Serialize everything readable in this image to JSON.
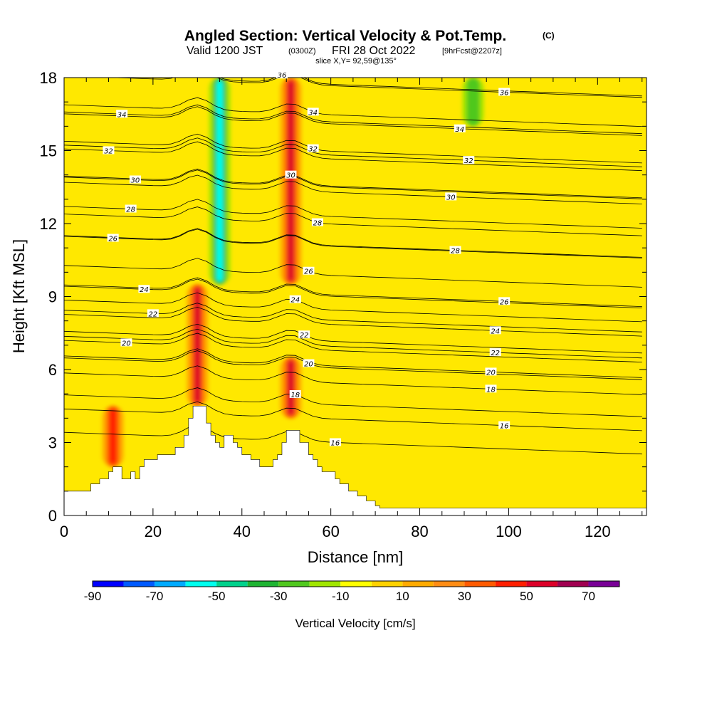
{
  "chart_data": {
    "type": "heatmap",
    "title": "Angled Section: Vertical Velocity & Pot.Temp.",
    "title_mark": "(C)",
    "subtitle": {
      "valid": "Valid 1200 JST",
      "utc": "(0300Z)",
      "date": "FRI 28 Oct 2022",
      "fcst": "[9hrFcst@2207z]"
    },
    "slice": "slice X,Y= 92,59@135°",
    "xlabel": "Distance [nm]",
    "ylabel": "Height [Kft MSL]",
    "xlim": [
      0,
      131
    ],
    "ylim": [
      0,
      18
    ],
    "xticks": [
      "0",
      "20",
      "40",
      "60",
      "80",
      "100",
      "120"
    ],
    "yticks": [
      "0",
      "3",
      "6",
      "9",
      "12",
      "15",
      "18"
    ],
    "colorbar": {
      "label": "Vertical Velocity [cm/s]",
      "range": [
        -90,
        80
      ],
      "tick_labels": [
        "-90",
        "-70",
        "-50",
        "-30",
        "-10",
        "10",
        "30",
        "50",
        "70"
      ],
      "colors": [
        "#0000ff",
        "#005aff",
        "#00aaff",
        "#00ffee",
        "#00d28c",
        "#1eb432",
        "#50c81e",
        "#a0e600",
        "#ffff00",
        "#ffd200",
        "#ffaa00",
        "#ff8c14",
        "#ff5a00",
        "#ff1e00",
        "#dc0028",
        "#a00050",
        "#780096"
      ]
    },
    "field_features": [
      {
        "kind": "updraft",
        "x": 30,
        "z_bottom": 4.5,
        "z_top": 9.5,
        "w": 55
      },
      {
        "kind": "downdraft",
        "x": 35,
        "z_bottom": 9.5,
        "z_top": 18,
        "w": -55
      },
      {
        "kind": "updraft",
        "x": 51,
        "z_bottom": 9.5,
        "z_top": 18,
        "w": 55
      },
      {
        "kind": "updraft",
        "x": 51,
        "z_bottom": 4,
        "z_top": 6.5,
        "w": 50
      },
      {
        "kind": "updraft",
        "x": 11,
        "z_bottom": 2,
        "z_top": 4.5,
        "w": 45
      },
      {
        "kind": "downdraft",
        "x": 92,
        "z_bottom": 16,
        "z_top": 18,
        "w": -25
      }
    ],
    "terrain_profile": {
      "x": [
        0,
        5,
        6,
        7,
        8,
        9,
        10,
        11,
        12,
        13,
        14,
        15,
        16,
        17,
        18,
        19,
        20,
        21,
        22,
        23,
        24,
        25,
        26,
        27,
        28,
        29,
        30,
        31,
        32,
        33,
        34,
        35,
        36,
        37,
        38,
        39,
        40,
        41,
        42,
        43,
        44,
        45,
        46,
        47,
        48,
        49,
        50,
        51,
        52,
        53,
        54,
        55,
        56,
        57,
        58,
        59,
        60,
        61,
        62,
        63,
        64,
        65,
        66,
        67,
        68,
        69,
        70,
        71,
        72,
        131
      ],
      "z": [
        1.0,
        1.0,
        1.3,
        1.3,
        1.5,
        1.5,
        1.8,
        2.0,
        2.0,
        1.5,
        1.5,
        1.8,
        1.5,
        2.0,
        2.3,
        2.3,
        2.3,
        2.5,
        2.5,
        2.5,
        2.5,
        2.8,
        2.8,
        3.3,
        4.0,
        4.5,
        4.5,
        4.5,
        3.8,
        3.3,
        3.0,
        2.8,
        3.3,
        3.3,
        3.0,
        2.8,
        2.5,
        2.5,
        2.3,
        2.3,
        2.0,
        2.0,
        2.0,
        2.3,
        2.5,
        3.0,
        3.5,
        3.5,
        3.5,
        3.0,
        3.0,
        2.5,
        2.3,
        2.0,
        1.8,
        1.8,
        1.8,
        1.5,
        1.3,
        1.3,
        1.0,
        1.0,
        0.8,
        0.8,
        0.6,
        0.6,
        0.4,
        0.3,
        0.3,
        0.3
      ]
    },
    "theta_contours": [
      {
        "value": "16",
        "label_x": 99,
        "level": 3.7
      },
      {
        "value": "16",
        "label_x": 61,
        "level": 3.0
      },
      {
        "value": "18",
        "label_x": 96,
        "level": 5.2
      },
      {
        "value": "18",
        "label_x": 52,
        "level": 4.6
      },
      {
        "value": "20",
        "label_x": 96,
        "level": 5.9
      },
      {
        "value": "20",
        "label_x": 55,
        "level": 6.1
      },
      {
        "value": "20",
        "label_x": 14,
        "level": 7.1
      },
      {
        "value": "22",
        "label_x": 97,
        "level": 6.7
      },
      {
        "value": "22",
        "label_x": 54,
        "level": 7.2
      },
      {
        "value": "22",
        "label_x": 20,
        "level": 8.3
      },
      {
        "value": "24",
        "label_x": 97,
        "level": 7.6
      },
      {
        "value": "24",
        "label_x": 52,
        "level": 8.5
      },
      {
        "value": "24",
        "label_x": 18,
        "level": 9.3
      },
      {
        "value": "26",
        "label_x": 99,
        "level": 8.8
      },
      {
        "value": "26",
        "label_x": 55,
        "level": 9.9
      },
      {
        "value": "26",
        "label_x": 11,
        "level": 11.4
      },
      {
        "value": "28",
        "label_x": 88,
        "level": 10.9
      },
      {
        "value": "28",
        "label_x": 57,
        "level": 12.0
      },
      {
        "value": "28",
        "label_x": 15,
        "level": 12.6
      },
      {
        "value": "30",
        "label_x": 87,
        "level": 13.1
      },
      {
        "value": "30",
        "label_x": 51,
        "level": 13.6
      },
      {
        "value": "30",
        "label_x": 16,
        "level": 13.8
      },
      {
        "value": "32",
        "label_x": 91,
        "level": 14.6
      },
      {
        "value": "32",
        "label_x": 56,
        "level": 15.0
      },
      {
        "value": "32",
        "label_x": 10,
        "level": 15.0
      },
      {
        "value": "34",
        "label_x": 89,
        "level": 15.9
      },
      {
        "value": "34",
        "label_x": 56,
        "level": 16.5
      },
      {
        "value": "34",
        "label_x": 13,
        "level": 16.5
      },
      {
        "value": "36",
        "label_x": 99,
        "level": 17.4
      },
      {
        "value": "36",
        "label_x": 49,
        "level": 17.8
      }
    ]
  }
}
